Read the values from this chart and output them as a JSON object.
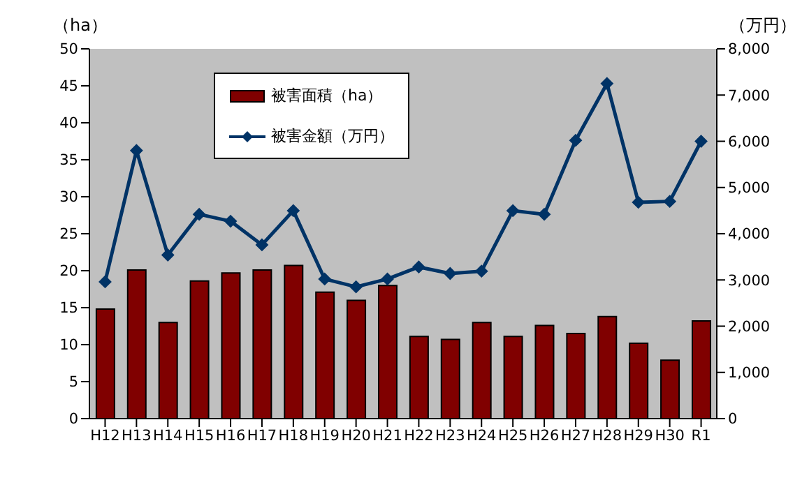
{
  "chart_data": {
    "type": "bar",
    "categories": [
      "H12",
      "H13",
      "H14",
      "H15",
      "H16",
      "H17",
      "H18",
      "H19",
      "H20",
      "H21",
      "H22",
      "H23",
      "H24",
      "H25",
      "H26",
      "H27",
      "H28",
      "H29",
      "H30",
      "R1"
    ],
    "series": [
      {
        "name": "被害面積（ha）",
        "color": "#800000",
        "values": [
          14.8,
          20.1,
          13.0,
          18.6,
          19.7,
          20.1,
          20.7,
          17.1,
          16.0,
          18.0,
          11.1,
          10.7,
          13.0,
          11.1,
          12.6,
          11.5,
          13.8,
          10.2,
          7.9,
          13.2
        ]
      },
      {
        "name": "被害金額（万円）",
        "type": "line",
        "axis": "y2",
        "color": "#003366",
        "values": [
          2960,
          5800,
          3540,
          4420,
          4270,
          3760,
          4500,
          3020,
          2850,
          3020,
          3280,
          3140,
          3190,
          4500,
          4420,
          6020,
          7250,
          4680,
          4700,
          6000
        ]
      }
    ],
    "ylabel": "（ha）",
    "y2label": "（万円）",
    "ylim": [
      0,
      50
    ],
    "yticks": [
      0,
      5,
      10,
      15,
      20,
      25,
      30,
      35,
      40,
      45,
      50
    ],
    "y2lim": [
      0,
      8000
    ],
    "y2ticks": [
      {
        "value": 0,
        "label": "0"
      },
      {
        "value": 1000,
        "label": "1,000"
      },
      {
        "value": 2000,
        "label": "2,000"
      },
      {
        "value": 3000,
        "label": "3,000"
      },
      {
        "value": 4000,
        "label": "4,000"
      },
      {
        "value": 5000,
        "label": "5,000"
      },
      {
        "value": 6000,
        "label": "6,000"
      },
      {
        "value": 7000,
        "label": "7,000"
      },
      {
        "value": 8000,
        "label": "8,000"
      }
    ],
    "grid": false,
    "legend": "top left",
    "marker": "diamond",
    "line_style": "solid"
  }
}
